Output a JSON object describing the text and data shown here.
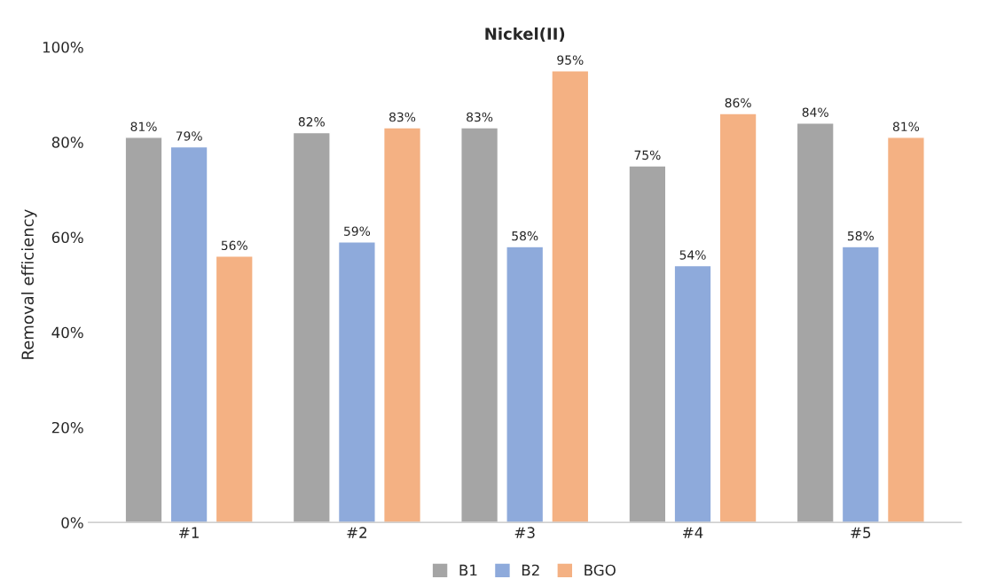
{
  "chart_data": {
    "type": "bar",
    "title": "Nickel(II)",
    "ylabel": "Removal efficiency",
    "categories": [
      "#1",
      "#2",
      "#3",
      "#4",
      "#5"
    ],
    "series": [
      {
        "name": "B1",
        "color": "#a5a5a5",
        "values": [
          81,
          82,
          83,
          75,
          84
        ],
        "value_labels": [
          "81%",
          "82%",
          "83%",
          "75%",
          "84%"
        ]
      },
      {
        "name": "B2",
        "color": "#8eaadb",
        "values": [
          79,
          59,
          58,
          54,
          58
        ],
        "value_labels": [
          "79%",
          "59%",
          "58%",
          "54%",
          "58%"
        ]
      },
      {
        "name": "BGO",
        "color": "#f4b183",
        "values": [
          56,
          83,
          95,
          86,
          81
        ],
        "value_labels": [
          "56%",
          "83%",
          "95%",
          "86%",
          "81%"
        ]
      }
    ],
    "ylim": [
      0,
      100
    ],
    "yticks": [
      {
        "value": 0,
        "label": "0%"
      },
      {
        "value": 20,
        "label": "20%"
      },
      {
        "value": 40,
        "label": "40%"
      },
      {
        "value": 60,
        "label": "60%"
      },
      {
        "value": 80,
        "label": "80%"
      },
      {
        "value": 100,
        "label": "100%"
      }
    ],
    "grid": false,
    "legend": "bottom"
  }
}
